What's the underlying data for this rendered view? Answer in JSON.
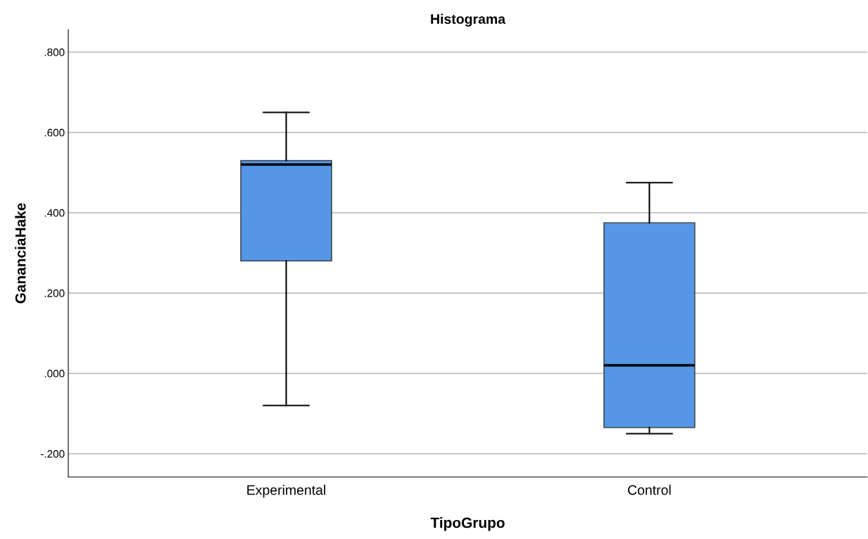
{
  "chart_data": {
    "type": "box",
    "title": "Histograma",
    "xlabel": "TipoGrupo",
    "ylabel": "GananciaHake",
    "categories": [
      "Experimental",
      "Control"
    ],
    "boxes": [
      {
        "low": -0.08,
        "q1": 0.28,
        "median": 0.52,
        "q3": 0.53,
        "high": 0.65
      },
      {
        "low": -0.15,
        "q1": -0.135,
        "median": 0.02,
        "q3": 0.375,
        "high": 0.475
      }
    ],
    "color": "#5596e6",
    "ylim": [
      -0.258,
      0.856
    ],
    "yticks": [
      {
        "value": -0.2,
        "label": "-.200"
      },
      {
        "value": 0,
        "label": ".000"
      },
      {
        "value": 0.2,
        "label": ".200"
      },
      {
        "value": 0.4,
        "label": ".400"
      },
      {
        "value": 0.6,
        "label": ".600"
      },
      {
        "value": 0.8,
        "label": ".800"
      }
    ],
    "grid": "y"
  }
}
